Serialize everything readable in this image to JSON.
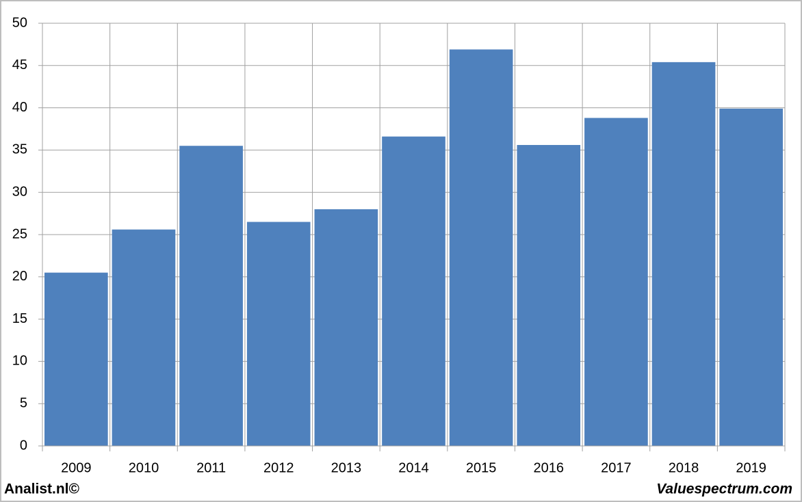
{
  "chart_data": {
    "type": "bar",
    "categories": [
      "2009",
      "2010",
      "2011",
      "2012",
      "2013",
      "2014",
      "2015",
      "2016",
      "2017",
      "2018",
      "2019"
    ],
    "values": [
      20.5,
      25.6,
      35.5,
      26.5,
      28.0,
      36.6,
      46.9,
      35.6,
      38.8,
      45.4,
      39.9
    ],
    "color": "#4f81bd",
    "ylim": [
      0,
      50
    ],
    "yticks": [
      0,
      5,
      10,
      15,
      20,
      25,
      30,
      35,
      40,
      45,
      50
    ],
    "grid": true,
    "footer_left": "Analist.nl©",
    "footer_right": "Valuespectrum.com"
  }
}
